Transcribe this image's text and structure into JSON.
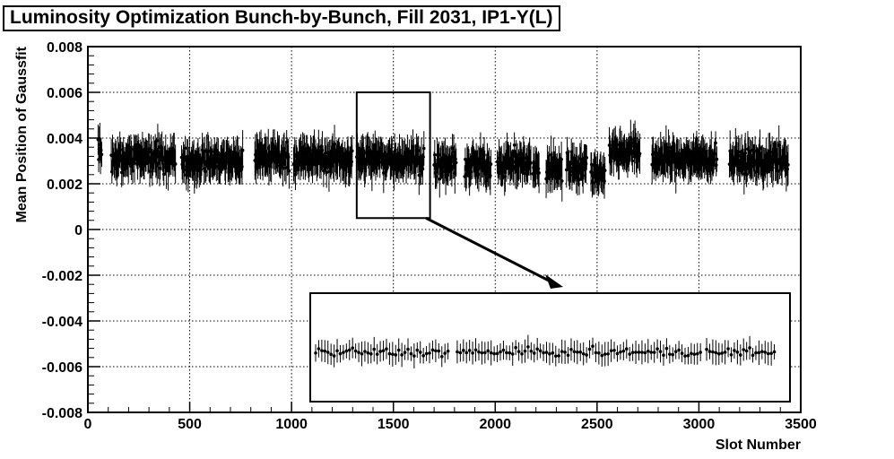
{
  "chart_data": {
    "type": "scatter",
    "title": "Luminosity Optimization Bunch-by-Bunch, Fill 2031, IP1-Y(L)",
    "xlabel": "Slot Number",
    "ylabel": "Mean Position of Gaussfit",
    "xlim": [
      0,
      3500
    ],
    "ylim": [
      -0.008,
      0.008
    ],
    "xticks": [
      "0",
      "500",
      "1000",
      "1500",
      "2000",
      "2500",
      "3000",
      "3500"
    ],
    "yticks": [
      "-0.008",
      "-0.006",
      "-0.004",
      "-0.002",
      "0",
      "0.002",
      "0.004",
      "0.006",
      "0.008"
    ],
    "grid": true,
    "marker_color": "#000000",
    "typical_error": 0.0007,
    "bunch_trains": [
      {
        "start": 50,
        "end": 70,
        "mean": 0.0033
      },
      {
        "start": 115,
        "end": 430,
        "mean": 0.0031
      },
      {
        "start": 460,
        "end": 760,
        "mean": 0.003
      },
      {
        "start": 820,
        "end": 990,
        "mean": 0.0032
      },
      {
        "start": 1010,
        "end": 1300,
        "mean": 0.0031
      },
      {
        "start": 1320,
        "end": 1650,
        "mean": 0.0031
      },
      {
        "start": 1700,
        "end": 1810,
        "mean": 0.0028
      },
      {
        "start": 1850,
        "end": 1980,
        "mean": 0.0028
      },
      {
        "start": 2010,
        "end": 2175,
        "mean": 0.0029
      },
      {
        "start": 2185,
        "end": 2215,
        "mean": 0.0026
      },
      {
        "start": 2250,
        "end": 2330,
        "mean": 0.0027
      },
      {
        "start": 2350,
        "end": 2450,
        "mean": 0.0028
      },
      {
        "start": 2470,
        "end": 2540,
        "mean": 0.0025
      },
      {
        "start": 2560,
        "end": 2710,
        "mean": 0.0034
      },
      {
        "start": 2770,
        "end": 3090,
        "mean": 0.0031
      },
      {
        "start": 3150,
        "end": 3440,
        "mean": 0.003
      }
    ],
    "zoom_window": {
      "x": [
        1320,
        1680
      ],
      "y": [
        0.0005,
        0.006
      ]
    },
    "inset": {
      "point_count": 150,
      "mean": 0.0031
    }
  }
}
